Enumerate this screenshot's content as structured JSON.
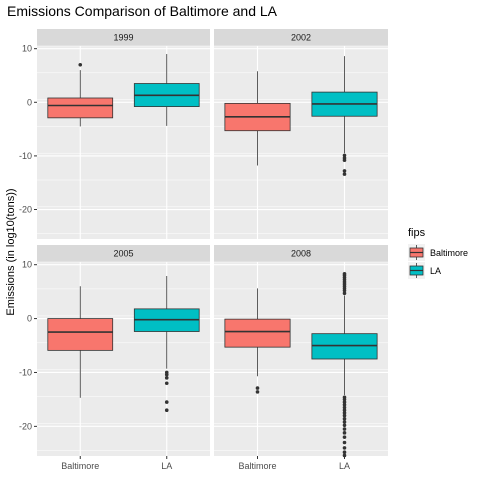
{
  "chart_data": {
    "type": "boxplot",
    "title": "Emissions Comparison of Baltimore and LA",
    "ylabel": "Emissions (in log10(tons))",
    "xlabel": "",
    "categories": [
      "Baltimore",
      "LA"
    ],
    "ylim": [
      -25.5,
      10.5
    ],
    "yticks": [
      10,
      0,
      -10,
      -20
    ],
    "tick_labels": [
      "10",
      "0",
      "-10",
      "-20"
    ],
    "grid": true,
    "legend": {
      "title": "fips",
      "position": "right",
      "entries": [
        {
          "label": "Baltimore",
          "color": "#f8766d"
        },
        {
          "label": "LA",
          "color": "#00bfc4"
        }
      ]
    },
    "panels": [
      {
        "label": "1999",
        "boxes": [
          {
            "category": "Baltimore",
            "whisker_low": -4.5,
            "q1": -2.9,
            "median": -0.6,
            "q3": 0.8,
            "whisker_high": 6.0,
            "outliers": [
              7.0
            ]
          },
          {
            "category": "LA",
            "whisker_low": -4.4,
            "q1": -0.8,
            "median": 1.3,
            "q3": 3.5,
            "whisker_high": 9.0,
            "outliers": []
          }
        ]
      },
      {
        "label": "2002",
        "boxes": [
          {
            "category": "Baltimore",
            "whisker_low": -11.8,
            "q1": -5.3,
            "median": -2.7,
            "q3": -0.2,
            "whisker_high": 5.8,
            "outliers": []
          },
          {
            "category": "LA",
            "whisker_low": -9.5,
            "q1": -2.6,
            "median": -0.3,
            "q3": 1.9,
            "whisker_high": 8.6,
            "outliers": [
              -9.9,
              -10.4,
              -10.8,
              -12.8,
              -13.4
            ]
          }
        ]
      },
      {
        "label": "2005",
        "boxes": [
          {
            "category": "Baltimore",
            "whisker_low": -14.7,
            "q1": -5.9,
            "median": -2.5,
            "q3": 0.0,
            "whisker_high": 6.0,
            "outliers": []
          },
          {
            "category": "LA",
            "whisker_low": -9.3,
            "q1": -2.4,
            "median": -0.2,
            "q3": 1.8,
            "whisker_high": 7.9,
            "outliers": [
              -10.0,
              -10.4,
              -11.0,
              -12.0,
              -15.5,
              -17.0
            ]
          }
        ]
      },
      {
        "label": "2008",
        "boxes": [
          {
            "category": "Baltimore",
            "whisker_low": -10.7,
            "q1": -5.3,
            "median": -2.4,
            "q3": -0.1,
            "whisker_high": 5.6,
            "outliers": [
              -12.9,
              -13.6
            ]
          },
          {
            "category": "LA",
            "whisker_low": -14.2,
            "q1": -7.5,
            "median": -5.0,
            "q3": -2.8,
            "whisker_high": 4.3,
            "outliers": [
              4.7,
              5.2,
              5.6,
              6.0,
              6.4,
              6.8,
              7.2,
              7.6,
              8.0,
              8.3,
              -14.6,
              -15.0,
              -15.5,
              -16.0,
              -16.5,
              -17.0,
              -17.5,
              -18.0,
              -18.6,
              -19.2,
              -19.8,
              -20.5,
              -21.2,
              -22.0,
              -23.0,
              -24.0,
              -24.8,
              -25.4
            ]
          }
        ]
      }
    ]
  }
}
